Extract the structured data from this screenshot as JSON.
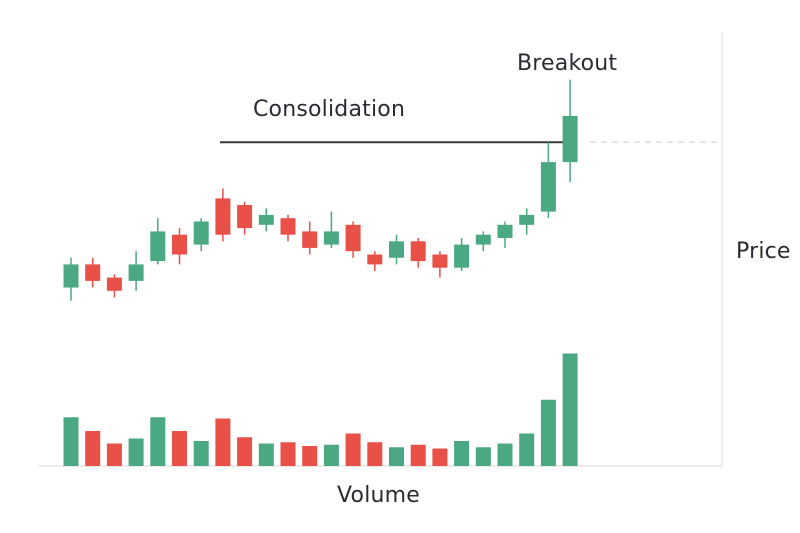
{
  "chart_data": {
    "type": "candlestick",
    "annotations": {
      "breakout": "Breakout",
      "consolidation": "Consolidation"
    },
    "axes": {
      "price_label": "Price",
      "volume_label": "Volume"
    },
    "colors": {
      "up": "#4aa882",
      "down": "#e85048",
      "line": "#3a3a3a",
      "axis": "#e6e6e6",
      "dashed": "#dddddd"
    },
    "price_range": [
      0,
      100
    ],
    "volume_range": [
      0,
      100
    ],
    "resistance_level": 79,
    "candles": [
      {
        "open": 35,
        "close": 42,
        "high": 44,
        "low": 31,
        "volume": 39
      },
      {
        "open": 42,
        "close": 37,
        "high": 44,
        "low": 35,
        "volume": 28
      },
      {
        "open": 38,
        "close": 34,
        "high": 39,
        "low": 32,
        "volume": 18
      },
      {
        "open": 37,
        "close": 42,
        "high": 46,
        "low": 34,
        "volume": 22
      },
      {
        "open": 43,
        "close": 52,
        "high": 56,
        "low": 42,
        "volume": 39
      },
      {
        "open": 51,
        "close": 45,
        "high": 53,
        "low": 42,
        "volume": 28
      },
      {
        "open": 48,
        "close": 55,
        "high": 56,
        "low": 46,
        "volume": 20
      },
      {
        "open": 62,
        "close": 51,
        "high": 65,
        "low": 49,
        "volume": 38
      },
      {
        "open": 60,
        "close": 53,
        "high": 61,
        "low": 51,
        "volume": 23
      },
      {
        "open": 54,
        "close": 57,
        "high": 59,
        "low": 52,
        "volume": 18
      },
      {
        "open": 56,
        "close": 51,
        "high": 57,
        "low": 49,
        "volume": 19
      },
      {
        "open": 52,
        "close": 47,
        "high": 55,
        "low": 45,
        "volume": 16
      },
      {
        "open": 48,
        "close": 52,
        "high": 58,
        "low": 47,
        "volume": 17
      },
      {
        "open": 54,
        "close": 46,
        "high": 55,
        "low": 44,
        "volume": 26
      },
      {
        "open": 45,
        "close": 42,
        "high": 46,
        "low": 40,
        "volume": 19
      },
      {
        "open": 44,
        "close": 49,
        "high": 51,
        "low": 42,
        "volume": 15
      },
      {
        "open": 49,
        "close": 43,
        "high": 50,
        "low": 41,
        "volume": 17
      },
      {
        "open": 45,
        "close": 41,
        "high": 46,
        "low": 38,
        "volume": 14
      },
      {
        "open": 41,
        "close": 48,
        "high": 50,
        "low": 40,
        "volume": 20
      },
      {
        "open": 48,
        "close": 51,
        "high": 52,
        "low": 46,
        "volume": 15
      },
      {
        "open": 50,
        "close": 54,
        "high": 55,
        "low": 47,
        "volume": 18
      },
      {
        "open": 54,
        "close": 57,
        "high": 59,
        "low": 51,
        "volume": 26
      },
      {
        "open": 58,
        "close": 73,
        "high": 79,
        "low": 56,
        "volume": 53
      },
      {
        "open": 73,
        "close": 87,
        "high": 98,
        "low": 67,
        "volume": 90
      }
    ]
  }
}
